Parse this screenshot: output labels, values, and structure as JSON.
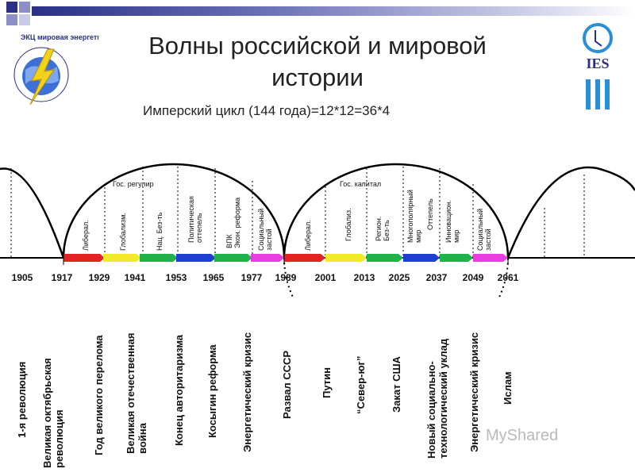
{
  "title_line1": "Волны российской и мировой",
  "title_line2": "истории",
  "subtitle": "Имперский цикл (144 года)=12*12=36*4",
  "logo_left_text": "ЭКЦ мировая энергетика",
  "logo_right_text": "IES",
  "top_labels": {
    "left": "Гос. регулир",
    "right": "Гос. капитал"
  },
  "years": [
    "1905",
    "1917",
    "1929",
    "1941",
    "1953",
    "1965",
    "1977",
    "1989",
    "2001",
    "2013",
    "2025",
    "2037",
    "2049",
    "2061"
  ],
  "segment_labels": [
    {
      "line1": "Либерал.",
      "line2": ""
    },
    {
      "line1": "Глобализм.",
      "line2": ""
    },
    {
      "line1": "Нац. Без-ть",
      "line2": ""
    },
    {
      "line1": "Политическая",
      "line2": "оттепель"
    },
    {
      "line1": "ВПК",
      "line2": "Экон. реформа"
    },
    {
      "line1": "Социальный",
      "line2": "застой"
    },
    {
      "line1": "Либерал.",
      "line2": ""
    },
    {
      "line1": "Глобализ.",
      "line2": ""
    },
    {
      "line1": "Регион.",
      "line2": "Без-ть"
    },
    {
      "line1": "Многополярный",
      "line2": "мир"
    },
    {
      "line1": "Оттепель",
      "line2": ""
    },
    {
      "line1": "Инновацион.",
      "line2": "мир"
    },
    {
      "line1": "Социальный",
      "line2": "застой"
    }
  ],
  "events": [
    {
      "line1": "1-я революция",
      "line2": ""
    },
    {
      "line1": "Великая октябрьская",
      "line2": "революция"
    },
    {
      "line1": "Год великого перелома",
      "line2": ""
    },
    {
      "line1": "Великая отечественная",
      "line2": "война"
    },
    {
      "line1": "Конец авторитаризма",
      "line2": ""
    },
    {
      "line1": "Косыгин реформа",
      "line2": ""
    },
    {
      "line1": "Энергетический кризис",
      "line2": ""
    },
    {
      "line1": "Развал СССР",
      "line2": ""
    },
    {
      "line1": "Путин",
      "line2": ""
    },
    {
      "line1": "“Север-юг”",
      "line2": ""
    },
    {
      "line1": "Закат США",
      "line2": ""
    },
    {
      "line1": "Новый социально-",
      "line2": "технологический уклад"
    },
    {
      "line1": "Энергетический кризис",
      "line2": ""
    },
    {
      "line1": "Ислам",
      "line2": ""
    }
  ],
  "watermark": "MyShared",
  "colors": {
    "red": "#e32222",
    "yellow": "#f3ea2b",
    "green": "#22b24c",
    "blue": "#1e3fd0",
    "magenta": "#e83ee0",
    "bar": "#2b2f86"
  }
}
